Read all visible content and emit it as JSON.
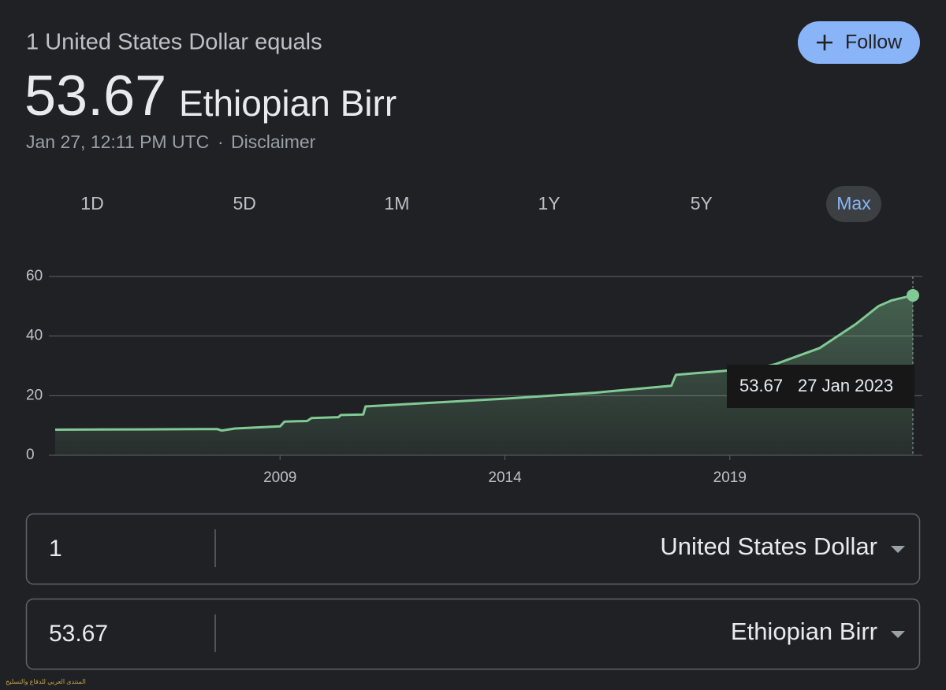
{
  "header": {
    "subtitle": "1 United States Dollar equals",
    "value": "53.67",
    "currency": "Ethiopian Birr",
    "timestamp": "Jan 27, 12:11 PM UTC",
    "separator": "·",
    "disclaimer": "Disclaimer",
    "follow": "Follow"
  },
  "ranges": {
    "items": [
      "1D",
      "5D",
      "1M",
      "1Y",
      "5Y",
      "Max"
    ],
    "selected": 5
  },
  "chart_data": {
    "type": "line",
    "color": "#81c995",
    "grid": true,
    "x": [
      2004.0,
      2006.0,
      2007.6,
      2007.7,
      2008.0,
      2009.0,
      2009.1,
      2009.6,
      2009.7,
      2010.3,
      2010.35,
      2010.85,
      2010.9,
      2012.0,
      2014.0,
      2016.0,
      2017.7,
      2017.8,
      2019.0,
      2019.5,
      2020.0,
      2021.0,
      2021.8,
      2022.3,
      2022.6,
      2023.07
    ],
    "values": [
      8.6,
      8.7,
      8.8,
      8.3,
      9.0,
      9.7,
      11.3,
      11.5,
      12.5,
      12.8,
      13.5,
      13.7,
      16.4,
      17.3,
      19.0,
      21.0,
      23.3,
      27.0,
      28.5,
      28.8,
      30.5,
      36.0,
      44.0,
      50.0,
      52.0,
      53.67
    ],
    "xlim": [
      2004.0,
      2023.07
    ],
    "ylim": [
      0,
      60
    ],
    "yticks": [
      0,
      20,
      40,
      60
    ],
    "xticks": [
      2009,
      2014,
      2019
    ],
    "tooltip": {
      "value": 53.67,
      "date": "27 Jan 2023"
    }
  },
  "converter": {
    "rows": [
      {
        "amount": "1",
        "currency": "United States Dollar"
      },
      {
        "amount": "53.67",
        "currency": "Ethiopian Birr"
      }
    ]
  },
  "watermark": "المنتدى العربي للدفاع والتسليح"
}
